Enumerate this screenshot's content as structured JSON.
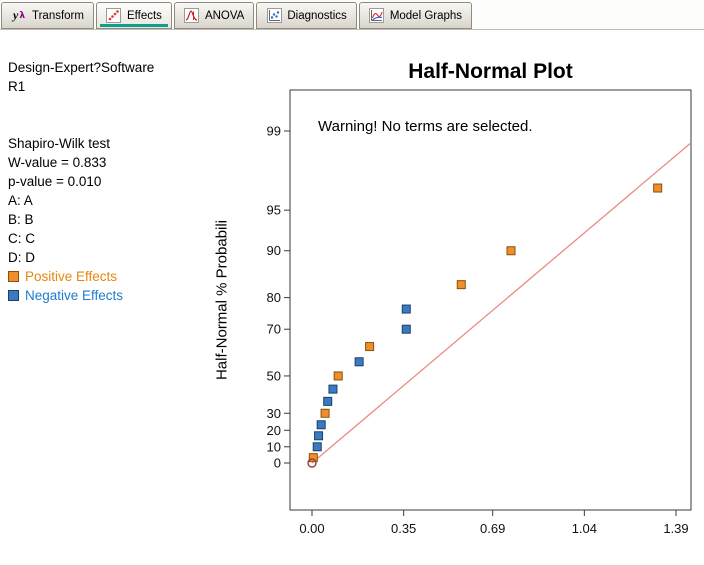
{
  "tabs": {
    "active_indicator_color": "#0E9E8B",
    "items": [
      {
        "label": "Transform",
        "icon": "y-lambda-icon",
        "active": false
      },
      {
        "label": "Effects",
        "icon": "effects-plot-icon",
        "active": true
      },
      {
        "label": "ANOVA",
        "icon": "anova-curve-icon",
        "active": false
      },
      {
        "label": "Diagnostics",
        "icon": "diagnostics-scatter-icon",
        "active": false
      },
      {
        "label": "Model Graphs",
        "icon": "model-graphs-icon",
        "active": false
      }
    ]
  },
  "sidebar": {
    "title_line1": "Design-Expert?Software",
    "title_line2": "R1",
    "stats": [
      "Shapiro-Wilk test",
      "W-value = 0.833",
      "p-value = 0.010"
    ],
    "factors": [
      "A: A",
      "B: B",
      "C: C",
      "D: D"
    ],
    "legend": [
      {
        "label": "Positive Effects",
        "color": "#E8860D",
        "swatch_fill": "#EF8E2C",
        "swatch_stroke": "#8a5200"
      },
      {
        "label": "Negative Effects",
        "color": "#1F7CCB",
        "swatch_fill": "#3A7BBF",
        "swatch_stroke": "#1a3f6e"
      }
    ]
  },
  "chart_data": {
    "type": "scatter",
    "title": "Half-Normal Plot",
    "warning": "Warning! No terms are selected.",
    "xlabel": "",
    "ylabel": "Half-Normal % Probabili",
    "y_scale": "half-normal-probability",
    "grid": false,
    "x_ticks": [
      0.0,
      0.35,
      0.69,
      1.04,
      1.39
    ],
    "x_tick_labels": [
      "0.00",
      "0.35",
      "0.69",
      "1.04",
      "1.39"
    ],
    "y_ticks": [
      0,
      10,
      20,
      30,
      50,
      70,
      80,
      90,
      95,
      99
    ],
    "xlim": [
      -0.08,
      1.45
    ],
    "ylim_p": [
      0,
      99
    ],
    "ref_line": {
      "x1": 0,
      "p1": 0,
      "x2": 1.447,
      "p2": 98.7,
      "color": "#E98B84"
    },
    "series": [
      {
        "name": "Positive Effects",
        "marker": "square",
        "fill": "#EF8E2C",
        "stroke": "#8a5200",
        "points": [
          {
            "x": 1.32,
            "p": 96.7
          },
          {
            "x": 0.76,
            "p": 90
          },
          {
            "x": 0.57,
            "p": 83.3
          },
          {
            "x": 0.22,
            "p": 63.3
          },
          {
            "x": 0.1,
            "p": 50
          },
          {
            "x": 0.05,
            "p": 30
          },
          {
            "x": 0.005,
            "p": 3.3
          }
        ]
      },
      {
        "name": "Negative Effects",
        "marker": "square",
        "fill": "#3A7BBF",
        "stroke": "#1a3f6e",
        "points": [
          {
            "x": 0.36,
            "p": 76.7
          },
          {
            "x": 0.36,
            "p": 70
          },
          {
            "x": 0.18,
            "p": 56.7
          },
          {
            "x": 0.08,
            "p": 43.3
          },
          {
            "x": 0.06,
            "p": 36.7
          },
          {
            "x": 0.035,
            "p": 23.3
          },
          {
            "x": 0.025,
            "p": 16.7
          },
          {
            "x": 0.02,
            "p": 10
          }
        ]
      }
    ],
    "origin_marker": {
      "x": 0,
      "p": 0,
      "shape": "circle",
      "stroke": "#9e3a3a"
    }
  }
}
